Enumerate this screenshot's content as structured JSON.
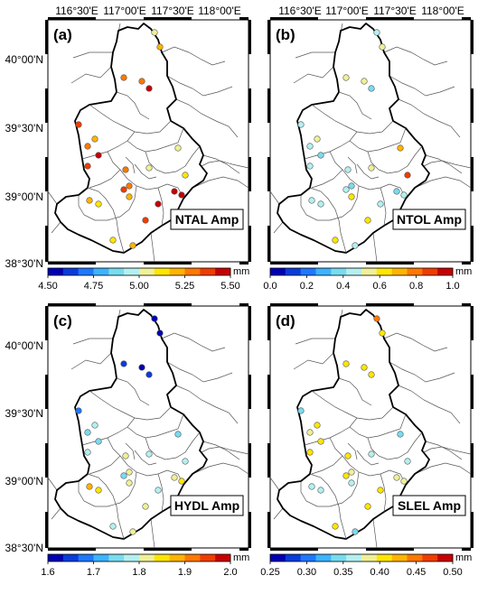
{
  "top_lon_labels": [
    "116°30'E",
    "117°00'E",
    "117°30'E",
    "118°00'E"
  ],
  "lat_labels": [
    "40°00'N",
    "39°30'N",
    "39°00'N",
    "38°30'N"
  ],
  "unit": "mm",
  "colors": {
    "water": "#ffffff",
    "land": "#ffffff",
    "boundary": "#000000",
    "district": "#555555",
    "scale": [
      "#0000b4",
      "#0a3cdc",
      "#1e78ff",
      "#3cb4ff",
      "#78dcf0",
      "#b4f0f0",
      "#f0f096",
      "#ffe600",
      "#ffb400",
      "#ff7800",
      "#f03c00",
      "#c80000"
    ]
  },
  "panels": [
    {
      "letter": "(a)",
      "title": "NTAL Amp",
      "cbar_ticks": [
        "4.50",
        "4.75",
        "5.00",
        "5.25",
        "5.50"
      ],
      "range": [
        4.5,
        5.5
      ],
      "stations": [
        5.0,
        5.2,
        5.3,
        5.3,
        5.45,
        5.38,
        5.3,
        5.18,
        5.42,
        5.38,
        5.25,
        5.32,
        5.34,
        5.2,
        5.05,
        5.0,
        5.1,
        5.48,
        5.5,
        5.52,
        5.35,
        5.22,
        5.15,
        5.1,
        5.2
      ]
    },
    {
      "letter": "(b)",
      "title": "NTOL Amp",
      "cbar_ticks": [
        "0.0",
        "0.2",
        "0.4",
        "0.6",
        "0.8",
        "1.0"
      ],
      "range": [
        0.0,
        1.0
      ],
      "stations": [
        0.45,
        0.55,
        0.5,
        0.55,
        0.4,
        0.42,
        0.45,
        0.5,
        0.4,
        0.42,
        0.45,
        0.4,
        0.45,
        0.6,
        0.5,
        0.7,
        0.85,
        0.4,
        0.42,
        0.45,
        0.6,
        0.45,
        0.42,
        0.6,
        0.48
      ]
    },
    {
      "letter": "(c)",
      "title": "HYDL Amp",
      "cbar_ticks": [
        "1.6",
        "1.7",
        "1.8",
        "1.9",
        "2.0"
      ],
      "range": [
        1.6,
        2.0
      ],
      "stations": [
        1.6,
        1.62,
        1.65,
        1.62,
        1.65,
        1.7,
        1.75,
        1.78,
        1.75,
        1.78,
        1.8,
        1.82,
        1.75,
        1.8,
        1.78,
        1.75,
        1.78,
        1.8,
        1.85,
        1.78,
        1.8,
        1.9,
        1.85,
        1.78,
        1.8
      ]
    },
    {
      "letter": "(d)",
      "title": "SLEL Amp",
      "cbar_ticks": [
        "0.25",
        "0.30",
        "0.35",
        "0.40",
        "0.45",
        "0.50"
      ],
      "range": [
        0.25,
        0.5
      ],
      "stations": [
        0.45,
        0.4,
        0.4,
        0.41,
        0.4,
        0.35,
        0.38,
        0.4,
        0.4,
        0.4,
        0.41,
        0.39,
        0.4,
        0.37,
        0.36,
        0.35,
        0.36,
        0.38,
        0.38,
        0.4,
        0.41,
        0.36,
        0.36,
        0.4,
        0.35
      ]
    }
  ]
}
